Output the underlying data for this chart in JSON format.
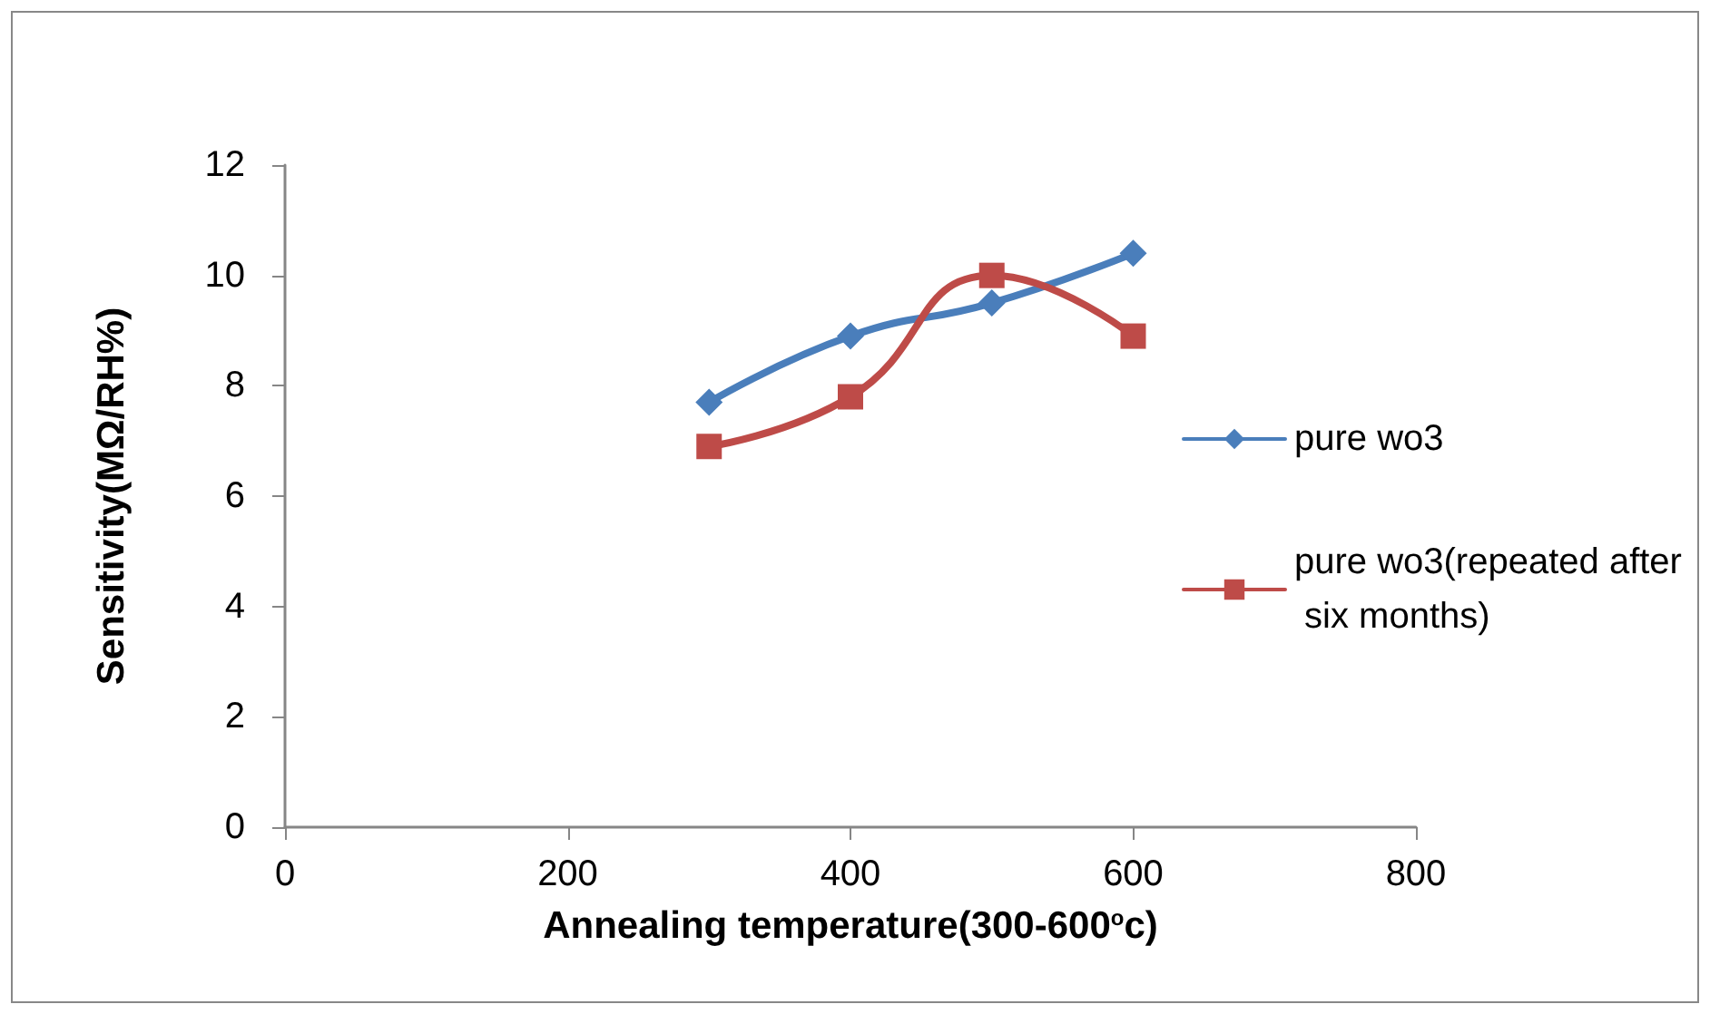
{
  "chart_data": {
    "type": "line",
    "xlabel": "Annealing temperature(300-600$^{o}$c)",
    "ylabel": "Sensitivity(MΩ/RH%)",
    "x": [
      300,
      400,
      500,
      600
    ],
    "series": [
      {
        "name": "pure wo3",
        "color": "#4a7ebb",
        "marker": "diamond",
        "values": [
          7.7,
          8.9,
          9.5,
          10.4
        ]
      },
      {
        "name": "pure wo3(repeated after six months)",
        "color": "#be4b48",
        "marker": "square",
        "values": [
          6.9,
          7.8,
          10.0,
          8.9
        ]
      }
    ],
    "xlim": [
      0,
      800
    ],
    "xticks": [
      0,
      200,
      400,
      600,
      800
    ],
    "ylim": [
      0,
      12
    ],
    "yticks": [
      0,
      2,
      4,
      6,
      8,
      10,
      12
    ],
    "grid": false,
    "legend": "right",
    "line_style": "solid"
  }
}
